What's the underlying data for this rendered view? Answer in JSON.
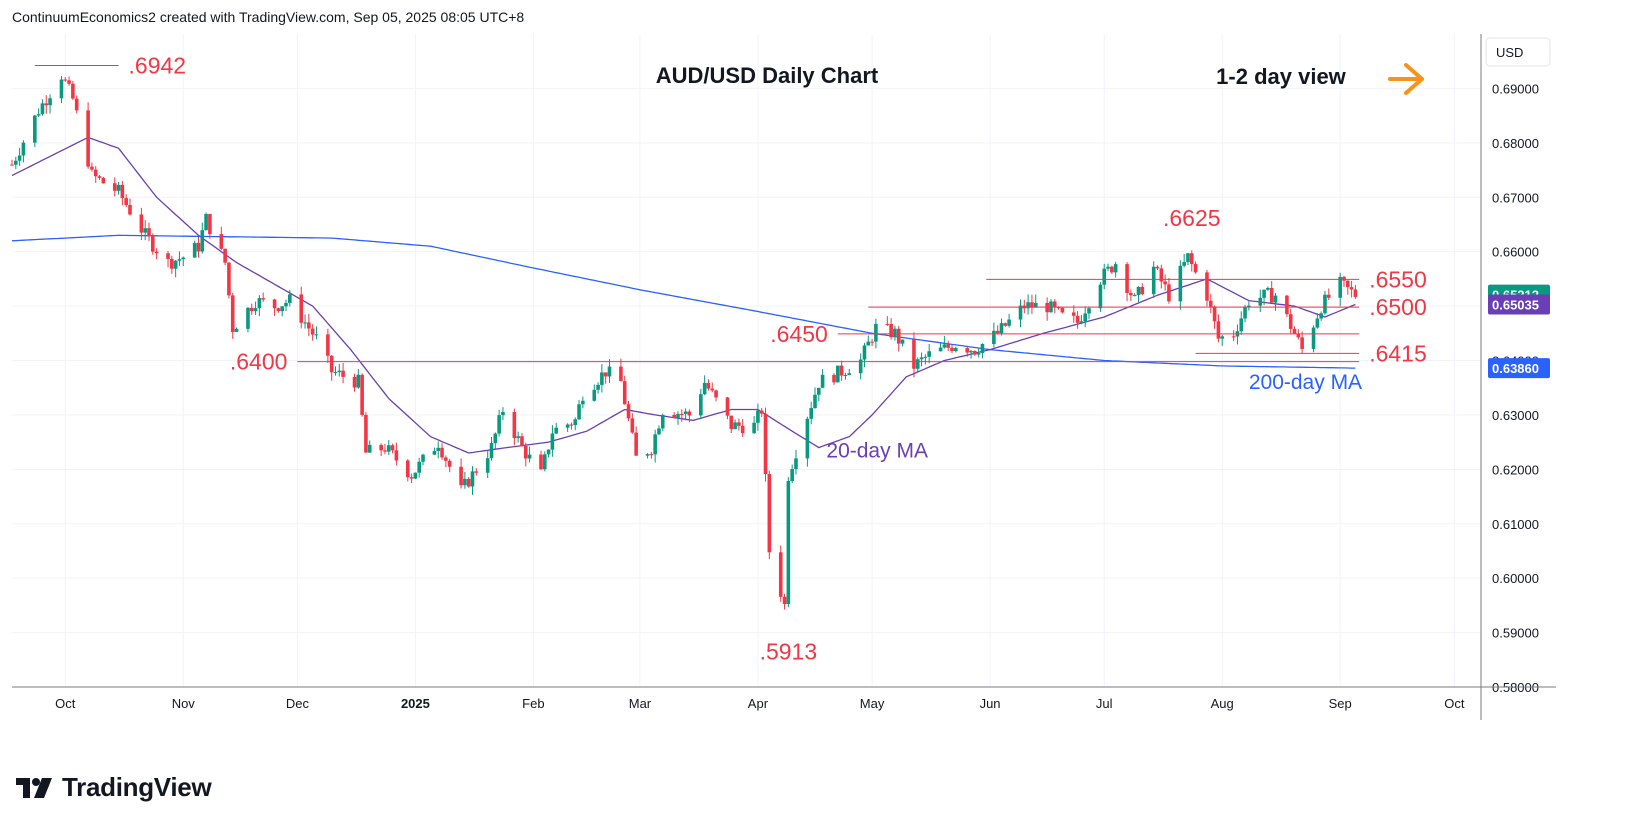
{
  "header": {
    "attribution": "ContinuumEconomics2 created with TradingView.com, Sep 05, 2025 08:05 UTC+8"
  },
  "brand": {
    "name": "TradingView"
  },
  "chart_data": {
    "type": "candlestick",
    "title": "AUD/USD Daily Chart",
    "view_label": "1-2 day view",
    "view_direction": "right",
    "view_arrow_color": "#f7931a",
    "currency": "USD",
    "ylim": [
      0.58,
      0.7
    ],
    "grid": true,
    "y_ticks": [
      "0.69000",
      "0.68000",
      "0.67000",
      "0.66000",
      "0.65000",
      "0.64000",
      "0.63000",
      "0.62000",
      "0.61000",
      "0.60000",
      "0.59000",
      "0.58000"
    ],
    "x_ticks": [
      {
        "label": "Oct",
        "date": "2024-10-01",
        "bold": false
      },
      {
        "label": "Nov",
        "date": "2024-11-01",
        "bold": false
      },
      {
        "label": "Dec",
        "date": "2024-12-01",
        "bold": false
      },
      {
        "label": "2025",
        "date": "2025-01-01",
        "bold": true
      },
      {
        "label": "Feb",
        "date": "2025-02-01",
        "bold": false
      },
      {
        "label": "Mar",
        "date": "2025-03-01",
        "bold": false
      },
      {
        "label": "Apr",
        "date": "2025-04-01",
        "bold": false
      },
      {
        "label": "May",
        "date": "2025-05-01",
        "bold": false
      },
      {
        "label": "Jun",
        "date": "2025-06-01",
        "bold": false
      },
      {
        "label": "Jul",
        "date": "2025-07-01",
        "bold": false
      },
      {
        "label": "Aug",
        "date": "2025-08-01",
        "bold": false
      },
      {
        "label": "Sep",
        "date": "2025-09-01",
        "bold": false
      },
      {
        "label": "Oct",
        "date": "2025-10-01",
        "bold": false
      }
    ],
    "x_range": [
      "2024-09-17",
      "2025-10-08"
    ],
    "price_badges": [
      {
        "label": "0.65212",
        "value": 0.6521,
        "color": "#089981"
      },
      {
        "label": "0.65035",
        "value": 0.6503,
        "color": "#6a3fb5"
      },
      {
        "label": "0.63860",
        "value": 0.6386,
        "color": "#2962ff"
      }
    ],
    "levels": [
      {
        "label": ".6942",
        "value": 0.6942,
        "from": "2024-09-23",
        "to": "2024-10-15",
        "side": "right"
      },
      {
        "label": ".6400",
        "value": 0.6398,
        "from": "2024-12-01",
        "to": "2025-09-06",
        "side": "left"
      },
      {
        "label": ".6450",
        "value": 0.6449,
        "from": "2025-04-22",
        "to": "2025-09-06",
        "side": "left"
      },
      {
        "label": ".6550",
        "value": 0.6549,
        "from": "2025-05-31",
        "to": "2025-09-06",
        "side": "right"
      },
      {
        "label": ".6500",
        "value": 0.6498,
        "from": "2025-04-30",
        "to": "2025-09-06",
        "side": "right"
      },
      {
        "label": ".6415",
        "value": 0.6413,
        "from": "2025-07-25",
        "to": "2025-09-06",
        "side": "right"
      }
    ],
    "annotations": [
      {
        "label": ".6625",
        "date": "2025-07-24",
        "value": 0.6625
      },
      {
        "label": ".5913",
        "date": "2025-04-09",
        "value": 0.5913
      }
    ],
    "ma_labels": [
      {
        "label": "20-day MA",
        "color": "#6a3fb5",
        "date": "2025-04-19",
        "value": 0.6222
      },
      {
        "label": "200-day MA",
        "color": "#2962ff",
        "date": "2025-08-08",
        "value": 0.6348
      }
    ],
    "anchors": [
      [
        "2024-09-17",
        0.676
      ],
      [
        "2024-09-24",
        0.686
      ],
      [
        "2024-09-30",
        0.6925
      ],
      [
        "2024-10-03",
        0.688
      ],
      [
        "2024-10-08",
        0.674
      ],
      [
        "2024-10-15",
        0.671
      ],
      [
        "2024-10-22",
        0.663
      ],
      [
        "2024-10-28",
        0.658
      ],
      [
        "2024-11-01",
        0.659
      ],
      [
        "2024-11-05",
        0.661
      ],
      [
        "2024-11-07",
        0.666
      ],
      [
        "2024-11-12",
        0.658
      ],
      [
        "2024-11-14",
        0.646
      ],
      [
        "2024-11-20",
        0.651
      ],
      [
        "2024-11-25",
        0.65
      ],
      [
        "2024-11-29",
        0.651
      ],
      [
        "2024-12-06",
        0.644
      ],
      [
        "2024-12-10",
        0.638
      ],
      [
        "2024-12-17",
        0.636
      ],
      [
        "2024-12-19",
        0.623
      ],
      [
        "2024-12-24",
        0.624
      ],
      [
        "2024-12-31",
        0.619
      ],
      [
        "2025-01-07",
        0.625
      ],
      [
        "2025-01-13",
        0.616
      ],
      [
        "2025-01-21",
        0.624
      ],
      [
        "2025-01-24",
        0.631
      ],
      [
        "2025-01-29",
        0.624
      ],
      [
        "2025-02-03",
        0.619
      ],
      [
        "2025-02-06",
        0.627
      ],
      [
        "2025-02-12",
        0.629
      ],
      [
        "2025-02-14",
        0.634
      ],
      [
        "2025-02-20",
        0.638
      ],
      [
        "2025-02-24",
        0.636
      ],
      [
        "2025-02-28",
        0.622
      ],
      [
        "2025-03-04",
        0.624
      ],
      [
        "2025-03-07",
        0.631
      ],
      [
        "2025-03-14",
        0.63
      ],
      [
        "2025-03-18",
        0.636
      ],
      [
        "2025-03-25",
        0.628
      ],
      [
        "2025-03-31",
        0.628
      ],
      [
        "2025-04-02",
        0.631
      ],
      [
        "2025-04-04",
        0.605
      ],
      [
        "2025-04-08",
        0.595
      ],
      [
        "2025-04-09",
        0.619
      ],
      [
        "2025-04-14",
        0.63
      ],
      [
        "2025-04-17",
        0.636
      ],
      [
        "2025-04-23",
        0.638
      ],
      [
        "2025-04-28",
        0.64
      ],
      [
        "2025-05-02",
        0.646
      ],
      [
        "2025-05-07",
        0.645
      ],
      [
        "2025-05-12",
        0.639
      ],
      [
        "2025-05-16",
        0.641
      ],
      [
        "2025-05-23",
        0.643
      ],
      [
        "2025-05-28",
        0.642
      ],
      [
        "2025-06-03",
        0.645
      ],
      [
        "2025-06-10",
        0.65
      ],
      [
        "2025-06-16",
        0.65
      ],
      [
        "2025-06-20",
        0.648
      ],
      [
        "2025-06-24",
        0.647
      ],
      [
        "2025-06-30",
        0.655
      ],
      [
        "2025-07-04",
        0.658
      ],
      [
        "2025-07-09",
        0.651
      ],
      [
        "2025-07-14",
        0.657
      ],
      [
        "2025-07-18",
        0.652
      ],
      [
        "2025-07-23",
        0.659
      ],
      [
        "2025-07-25",
        0.656
      ],
      [
        "2025-07-28",
        0.652
      ],
      [
        "2025-07-31",
        0.644
      ],
      [
        "2025-08-04",
        0.645
      ],
      [
        "2025-08-08",
        0.651
      ],
      [
        "2025-08-13",
        0.652
      ],
      [
        "2025-08-15",
        0.652
      ],
      [
        "2025-08-20",
        0.645
      ],
      [
        "2025-08-22",
        0.642
      ],
      [
        "2025-08-27",
        0.65
      ],
      [
        "2025-09-01",
        0.654
      ],
      [
        "2025-09-03",
        0.653
      ],
      [
        "2025-09-05",
        0.6521
      ]
    ],
    "ma20": [
      [
        "2024-09-17",
        0.674
      ],
      [
        "2024-10-07",
        0.681
      ],
      [
        "2024-10-15",
        0.679
      ],
      [
        "2024-10-25",
        0.67
      ],
      [
        "2024-11-05",
        0.663
      ],
      [
        "2024-11-15",
        0.658
      ],
      [
        "2024-11-25",
        0.654
      ],
      [
        "2024-12-05",
        0.65
      ],
      [
        "2024-12-15",
        0.642
      ],
      [
        "2024-12-25",
        0.633
      ],
      [
        "2025-01-05",
        0.626
      ],
      [
        "2025-01-15",
        0.623
      ],
      [
        "2025-01-25",
        0.624
      ],
      [
        "2025-02-05",
        0.625
      ],
      [
        "2025-02-15",
        0.627
      ],
      [
        "2025-02-25",
        0.631
      ],
      [
        "2025-03-05",
        0.63
      ],
      [
        "2025-03-15",
        0.629
      ],
      [
        "2025-03-25",
        0.631
      ],
      [
        "2025-04-01",
        0.631
      ],
      [
        "2025-04-10",
        0.627
      ],
      [
        "2025-04-17",
        0.624
      ],
      [
        "2025-04-25",
        0.626
      ],
      [
        "2025-05-01",
        0.63
      ],
      [
        "2025-05-10",
        0.637
      ],
      [
        "2025-05-20",
        0.64
      ],
      [
        "2025-06-01",
        0.642
      ],
      [
        "2025-06-15",
        0.645
      ],
      [
        "2025-07-01",
        0.648
      ],
      [
        "2025-07-15",
        0.652
      ],
      [
        "2025-07-28",
        0.655
      ],
      [
        "2025-08-08",
        0.651
      ],
      [
        "2025-08-20",
        0.65
      ],
      [
        "2025-08-28",
        0.648
      ],
      [
        "2025-09-05",
        0.6503
      ]
    ],
    "ma200": [
      [
        "2024-09-17",
        0.662
      ],
      [
        "2024-10-15",
        0.663
      ],
      [
        "2024-12-10",
        0.6625
      ],
      [
        "2025-01-05",
        0.661
      ],
      [
        "2025-02-01",
        0.657
      ],
      [
        "2025-03-01",
        0.653
      ],
      [
        "2025-04-01",
        0.649
      ],
      [
        "2025-05-01",
        0.645
      ],
      [
        "2025-06-01",
        0.642
      ],
      [
        "2025-07-01",
        0.64
      ],
      [
        "2025-08-01",
        0.639
      ],
      [
        "2025-09-05",
        0.6386
      ]
    ]
  }
}
